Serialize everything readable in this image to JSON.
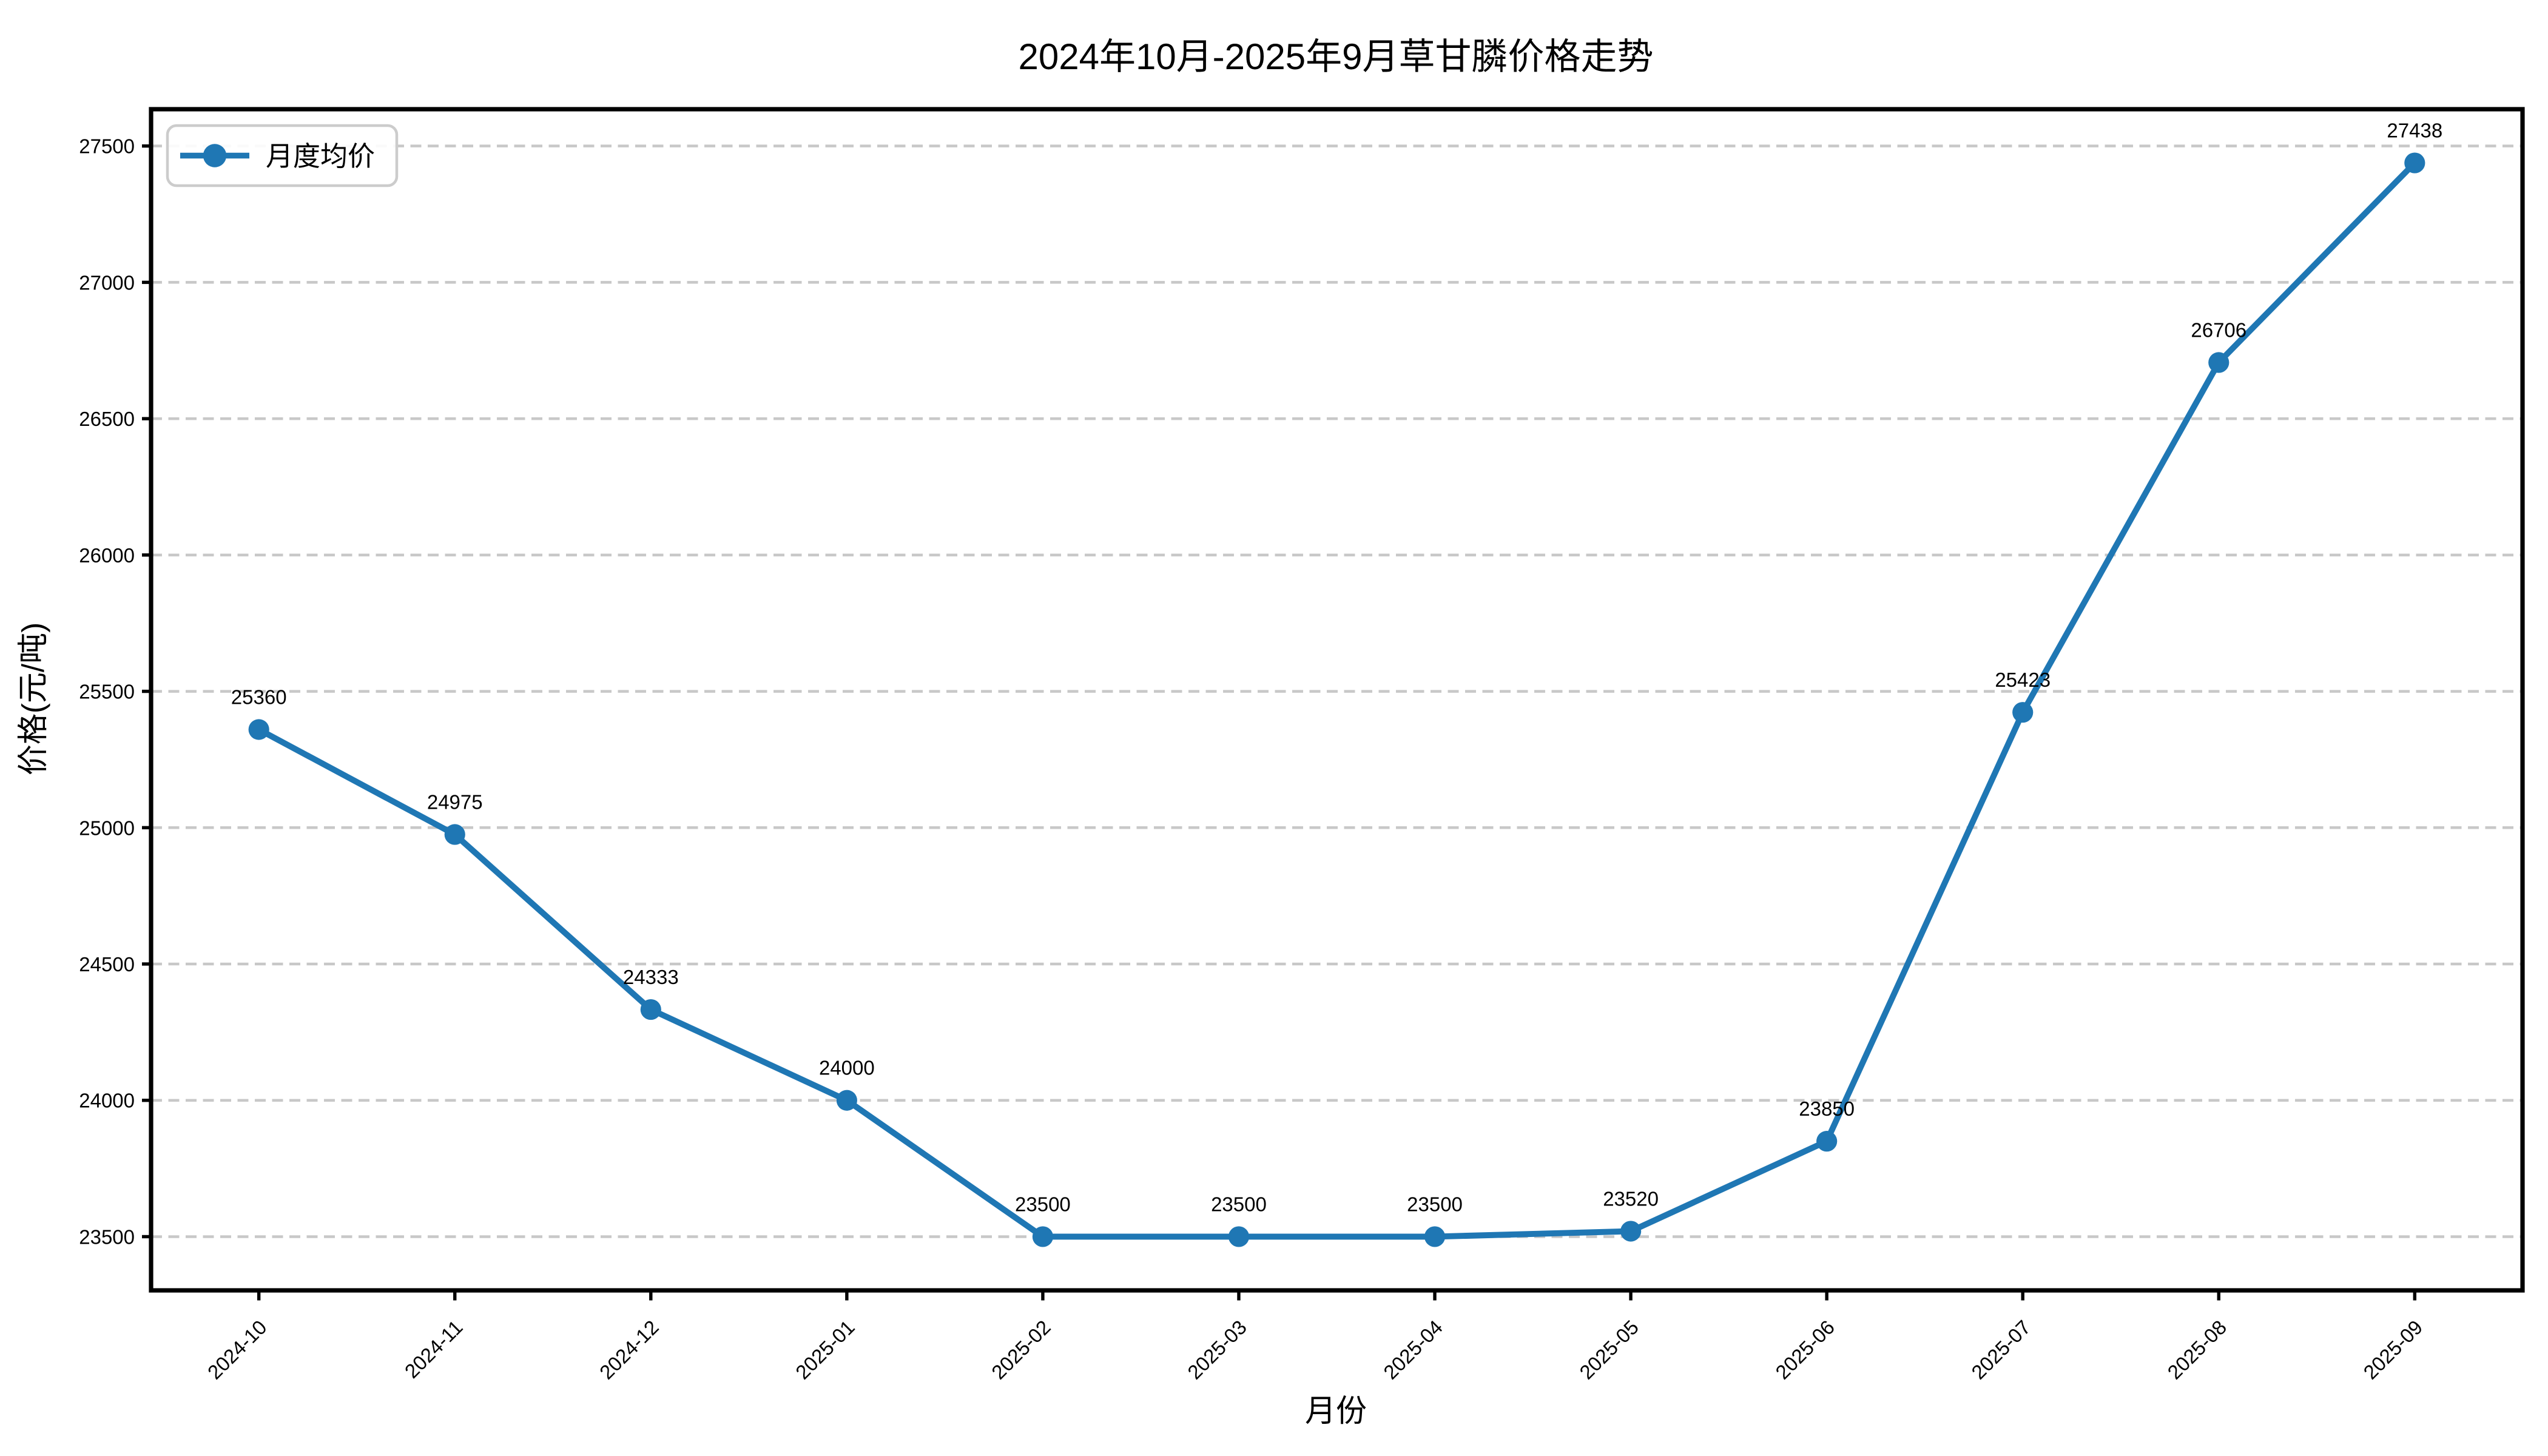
{
  "title": "2024年10月-2025年9月草甘膦价格走势",
  "legend": {
    "label": "月度均价",
    "position": "upper-left"
  },
  "axes": {
    "xlabel": "月份",
    "ylabel": "价格(元/吨)"
  },
  "colors": {
    "line": "#1f77b4",
    "marker": "#1f77b4",
    "grid": "#c8c8c8",
    "axis": "#000000",
    "text": "#000000",
    "legend_border": "#cccccc",
    "background": "#ffffff"
  },
  "chart_data": {
    "type": "line",
    "title": "2024年10月-2025年9月草甘膦价格走势",
    "xlabel": "月份",
    "ylabel": "价格(元/吨)",
    "categories": [
      "2024-10",
      "2024-11",
      "2024-12",
      "2025-01",
      "2025-02",
      "2025-03",
      "2025-04",
      "2025-05",
      "2025-06",
      "2025-07",
      "2025-08",
      "2025-09"
    ],
    "series": [
      {
        "name": "月度均价",
        "values": [
          25360,
          24975,
          24333,
          24000,
          23500,
          23500,
          23500,
          23520,
          23850,
          25423,
          26706,
          27438
        ],
        "color": "#1f77b4",
        "marker": "circle"
      }
    ],
    "annotations": [
      "25360",
      "24975",
      "24333",
      "24000",
      "23500",
      "23500",
      "23500",
      "23520",
      "23850",
      "25423",
      "26706",
      "27438"
    ],
    "yticks": [
      23500,
      24000,
      24500,
      25000,
      25500,
      26000,
      26500,
      27000,
      27500
    ],
    "ylim": [
      23303,
      27635
    ],
    "grid": "horizontal-dashed",
    "legend_position": "upper-left",
    "xtick_rotation": 45
  }
}
